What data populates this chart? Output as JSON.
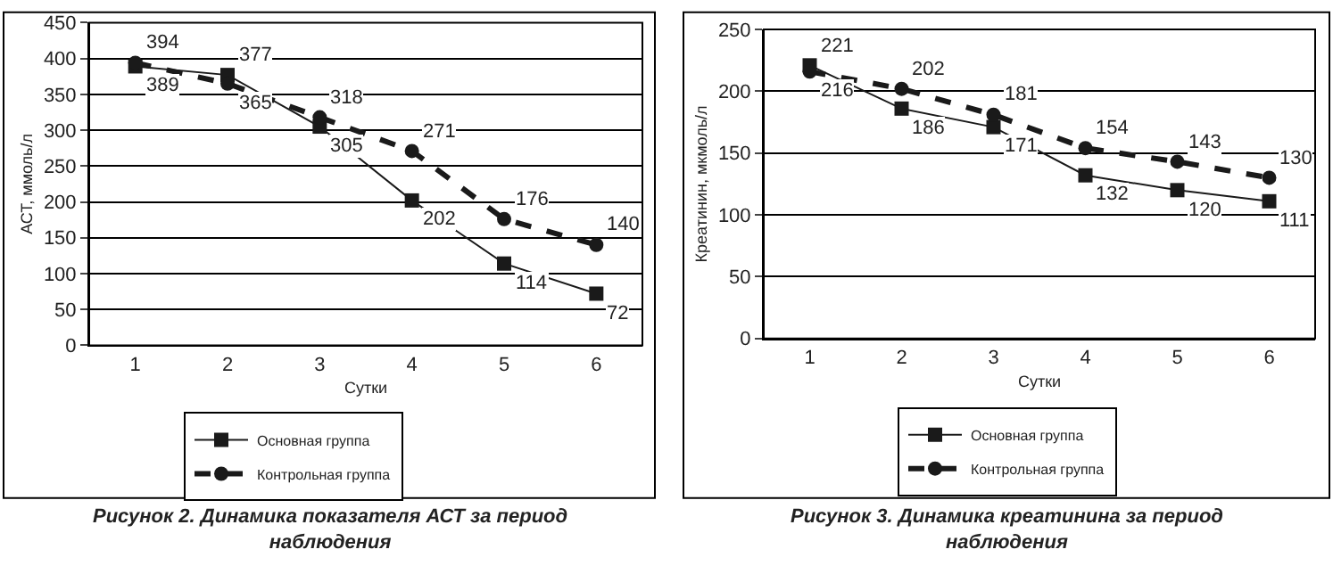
{
  "chart_data": [
    {
      "type": "line",
      "title": "Рисунок 2. Динамика показателя АСТ за период наблюдения",
      "xlabel": "Сутки",
      "ylabel": "АСТ, ммоль/л",
      "categories": [
        "1",
        "2",
        "3",
        "4",
        "5",
        "6"
      ],
      "series": [
        {
          "name": "Основная группа",
          "color": "#1a1a1a",
          "values": [
            389,
            377,
            305,
            202,
            114,
            72
          ],
          "marker": "square",
          "line_style": "solid"
        },
        {
          "name": "Контрольная группа",
          "color": "#1a1a1a",
          "values": [
            394,
            365,
            318,
            271,
            176,
            140
          ],
          "marker": "circle",
          "line_style": "dashed"
        }
      ],
      "ylim": [
        0,
        450
      ],
      "yticks": [
        0,
        50,
        100,
        150,
        200,
        250,
        300,
        350,
        400,
        450
      ],
      "grid": "y",
      "legend": "bottom",
      "data_labels": true
    },
    {
      "type": "line",
      "title": "Рисунок 3. Динамика креатинина за период наблюдения",
      "xlabel": "Сутки",
      "ylabel": "Креатинин, мкмоль/л",
      "categories": [
        "1",
        "2",
        "3",
        "4",
        "5",
        "6"
      ],
      "series": [
        {
          "name": "Основная группа",
          "color": "#1a1a1a",
          "values": [
            221,
            186,
            171,
            132,
            120,
            111
          ],
          "marker": "square",
          "line_style": "solid"
        },
        {
          "name": "Контрольная группа",
          "color": "#1a1a1a",
          "values": [
            216,
            202,
            181,
            154,
            143,
            130
          ],
          "marker": "circle",
          "line_style": "dashed"
        }
      ],
      "ylim": [
        0,
        250
      ],
      "yticks": [
        0,
        50,
        100,
        150,
        200,
        250
      ],
      "grid": "y",
      "legend": "bottom",
      "data_labels": true
    }
  ]
}
